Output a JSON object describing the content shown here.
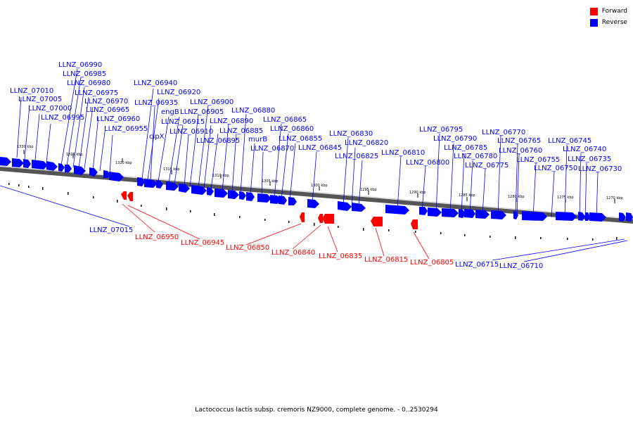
{
  "legend": {
    "items": [
      {
        "label": "Forward",
        "color": "#ff0000"
      },
      {
        "label": "Reverse",
        "color": "#0000ff"
      }
    ]
  },
  "caption": "Lactococcus lactis subsp. cremoris NZ9000, complete genome. - 0..2530294",
  "colors": {
    "forward": "#ff0000",
    "reverse": "#0000ff",
    "backbone": "#555555"
  },
  "ticks": [
    "1330 kbp",
    "1325 kbp",
    "1320 kbp",
    "1315 kbp",
    "1310 kbp",
    "1305 kbp",
    "1300 kbp",
    "1295 kbp",
    "1290 kbp",
    "1285 kbp",
    "1280 kbp",
    "1275 kbp",
    "1270 kbp"
  ],
  "reverse_labels": [
    "LLNZ_06990",
    "LLNZ_06985",
    "LLNZ_06980",
    "LLNZ_06975",
    "LLNZ_07010",
    "LLNZ_07005",
    "LLNZ_06970",
    "LLNZ_07000",
    "LLNZ_06965",
    "LLNZ_06995",
    "LLNZ_06960",
    "LLNZ_06955",
    "LLNZ_06940",
    "LLNZ_06920",
    "LLNZ_06935",
    "LLNZ_06900",
    "engB",
    "LLNZ_06905",
    "LLNZ_06880",
    "LLNZ_06915",
    "LLNZ_06890",
    "LLNZ_06865",
    "clpX",
    "LLNZ_06910",
    "LLNZ_06885",
    "LLNZ_06860",
    "LLNZ_06895",
    "murB",
    "LLNZ_06855",
    "LLNZ_06870",
    "LLNZ_06845",
    "LLNZ_06830",
    "LLNZ_06820",
    "LLNZ_06825",
    "LLNZ_06810",
    "LLNZ_06800",
    "LLNZ_06795",
    "LLNZ_06790",
    "LLNZ_06785",
    "LLNZ_06780",
    "LLNZ_06775",
    "LLNZ_06770",
    "LLNZ_06765",
    "LLNZ_06760",
    "LLNZ_06755",
    "LLNZ_06750",
    "LLNZ_06745",
    "LLNZ_06740",
    "LLNZ_06735",
    "LLNZ_06730",
    "LLNZ_07015",
    "LLNZ_06715",
    "LLNZ_06710"
  ],
  "forward_labels": [
    "LLNZ_06950",
    "LLNZ_06945",
    "LLNZ_06850",
    "LLNZ_06840",
    "LLNZ_06835",
    "LLNZ_06815",
    "LLNZ_06805"
  ]
}
